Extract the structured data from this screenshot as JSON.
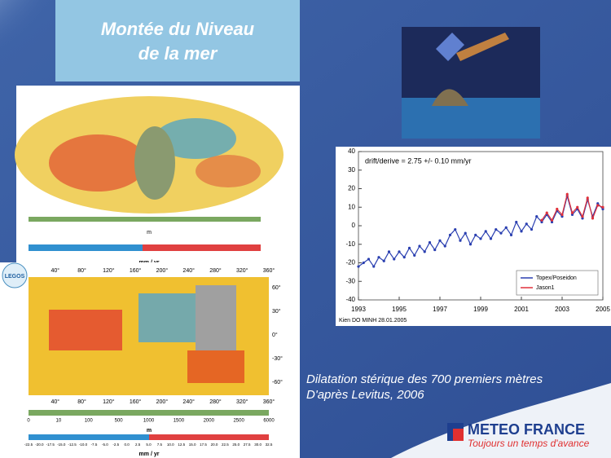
{
  "slide": {
    "title_line1": "Montée du Niveau",
    "title_line2": "de la mer",
    "caption_line1": "Dilatation stérique des 700 premiers mètres",
    "caption_line2": "D'après Levitus, 2006",
    "logo_name": "METEO FRANCE",
    "logo_tagline": "Toujours un temps d'avance",
    "map1_units_elev": "m",
    "map1_units_rate": "mm / yr",
    "map2_badge": "LEGOS",
    "map2_lon_labels": [
      "40°",
      "80°",
      "120°",
      "160°",
      "200°",
      "240°",
      "280°",
      "320°",
      "360°"
    ],
    "map2_lat_labels": [
      "60°",
      "30°",
      "0°",
      "-30°",
      "-60°"
    ],
    "map2_elev_labels": [
      "0",
      "10",
      "100",
      "500",
      "1000",
      "1500",
      "2000",
      "2500",
      "6000"
    ],
    "map2_units_elev": "m",
    "map2_rate_labels": [
      "-22.5",
      "-20.0",
      "-17.5",
      "-15.0",
      "-12.5",
      "-10.0",
      "-7.5",
      "-5.0",
      "-2.5",
      "0.0",
      "2.5",
      "5.0",
      "7.5",
      "10.0",
      "12.5",
      "15.0",
      "17.5",
      "20.0",
      "22.5",
      "25.0",
      "27.5",
      "30.0",
      "32.5"
    ],
    "map2_units_rate": "mm / yr"
  },
  "chart_data": {
    "type": "line",
    "annotation": "drift/derive = 2.75 +/- 0.10 mm/yr",
    "footer": "Kien DO MINH 28.01.2005",
    "xlim": [
      1993,
      2005
    ],
    "xticks": [
      1993,
      1995,
      1997,
      1999,
      2001,
      2003,
      2005
    ],
    "ylim": [
      -40,
      40
    ],
    "yticks": [
      -40,
      -30,
      -20,
      -10,
      0,
      10,
      20,
      30,
      40
    ],
    "legend": "lower right",
    "series": [
      {
        "name": "Topex/Poseidon",
        "color": "#2a3fb0",
        "x": [
          1993.0,
          1993.25,
          1993.5,
          1993.75,
          1994.0,
          1994.25,
          1994.5,
          1994.75,
          1995.0,
          1995.25,
          1995.5,
          1995.75,
          1996.0,
          1996.25,
          1996.5,
          1996.75,
          1997.0,
          1997.25,
          1997.5,
          1997.75,
          1998.0,
          1998.25,
          1998.5,
          1998.75,
          1999.0,
          1999.25,
          1999.5,
          1999.75,
          2000.0,
          2000.25,
          2000.5,
          2000.75,
          2001.0,
          2001.25,
          2001.5,
          2001.75,
          2002.0,
          2002.25,
          2002.5,
          2002.75,
          2003.0,
          2003.25,
          2003.5,
          2003.75,
          2004.0,
          2004.25,
          2004.5,
          2004.75,
          2005.0
        ],
        "values": [
          -22,
          -20,
          -18,
          -22,
          -17,
          -19,
          -14,
          -18,
          -14,
          -17,
          -12,
          -16,
          -11,
          -14,
          -9,
          -13,
          -8,
          -11,
          -5,
          -2,
          -8,
          -4,
          -10,
          -5,
          -7,
          -3,
          -7,
          -2,
          -4,
          -1,
          -5,
          2,
          -3,
          1,
          -2,
          5,
          2,
          6,
          2,
          8,
          5,
          16,
          6,
          9,
          4,
          14,
          5,
          12,
          9
        ]
      },
      {
        "name": "Jason1",
        "color": "#e0303a",
        "x": [
          2002.0,
          2002.25,
          2002.5,
          2002.75,
          2003.0,
          2003.25,
          2003.5,
          2003.75,
          2004.0,
          2004.25,
          2004.5,
          2004.75,
          2005.0
        ],
        "values": [
          3,
          7,
          3,
          9,
          6,
          17,
          7,
          10,
          5,
          15,
          4,
          11,
          10
        ]
      }
    ]
  }
}
